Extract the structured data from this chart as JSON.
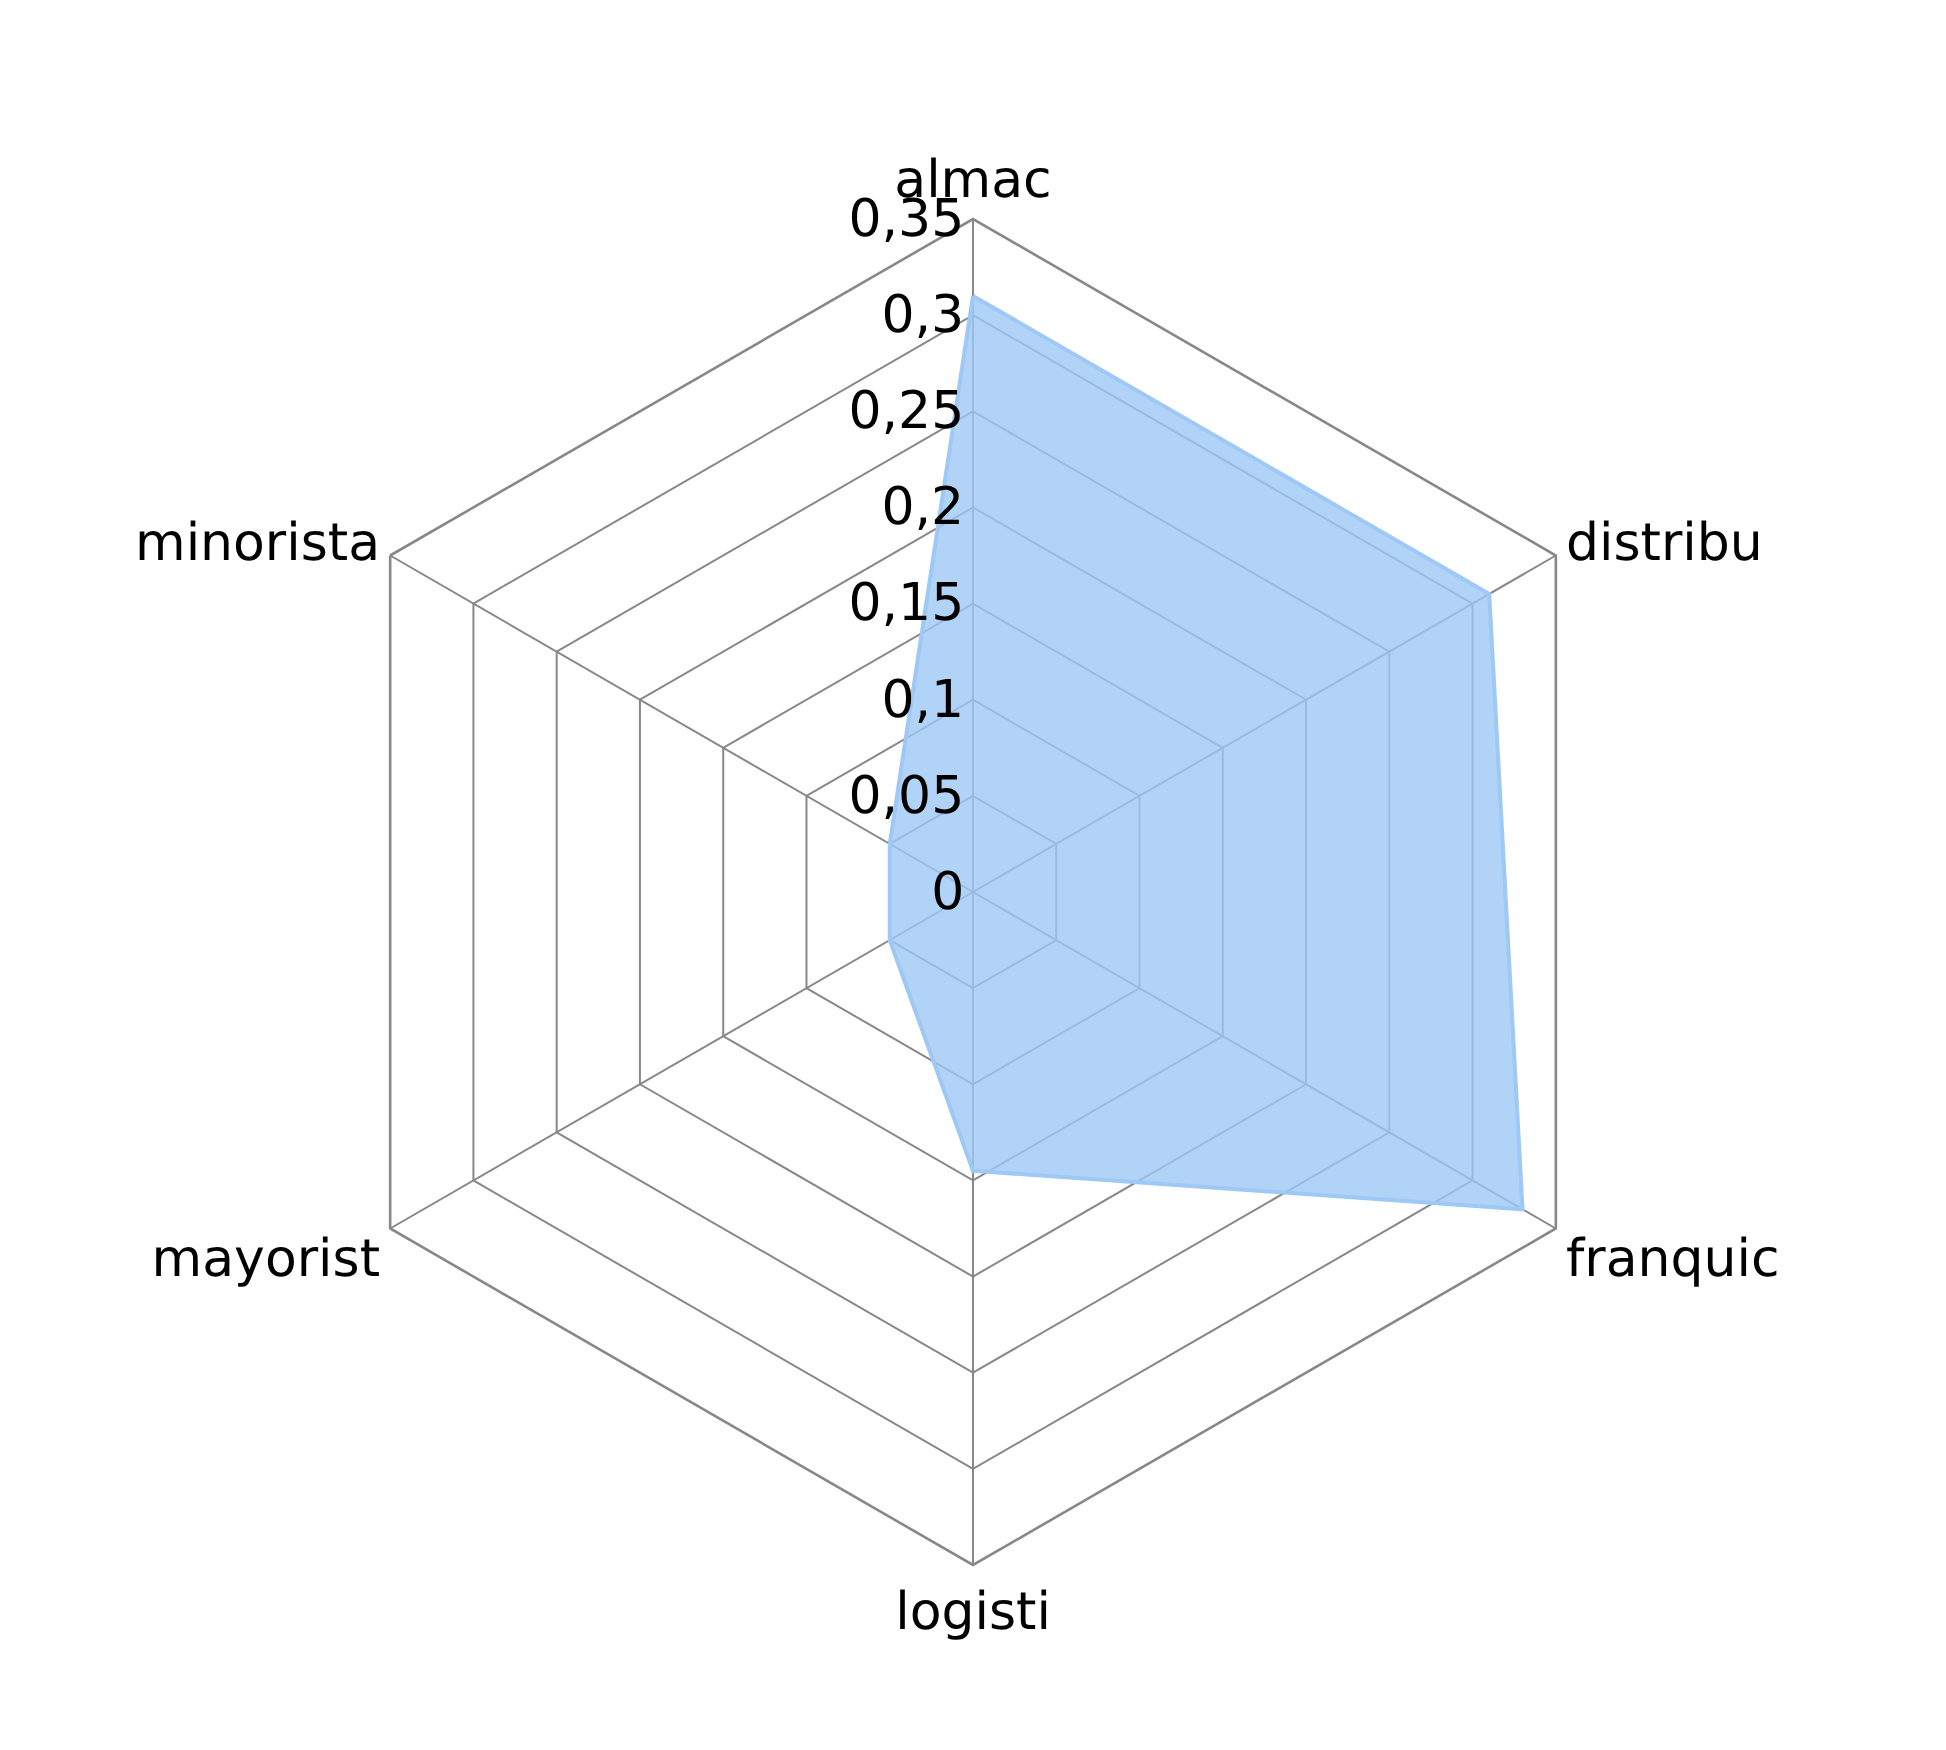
{
  "chart_data": {
    "type": "radar",
    "categories": [
      "almac",
      "distribu",
      "franquic",
      "logisti",
      "mayorist",
      "minorista"
    ],
    "series": [
      {
        "color": "#9ec8f5",
        "values": [
          0.31,
          0.31,
          0.33,
          0.145,
          0.05,
          0.05
        ]
      }
    ],
    "ylim": [
      0,
      0.35
    ],
    "yticks": [
      {
        "value": 0,
        "label": "0"
      },
      {
        "value": 0.05,
        "label": "0,05"
      },
      {
        "value": 0.1,
        "label": "0,1"
      },
      {
        "value": 0.15,
        "label": "0,15"
      },
      {
        "value": 0.2,
        "label": "0,2"
      },
      {
        "value": 0.25,
        "label": "0,25"
      },
      {
        "value": 0.3,
        "label": "0,3"
      },
      {
        "value": 0.35,
        "label": "0,35"
      }
    ],
    "grid": true,
    "marker": "none"
  }
}
